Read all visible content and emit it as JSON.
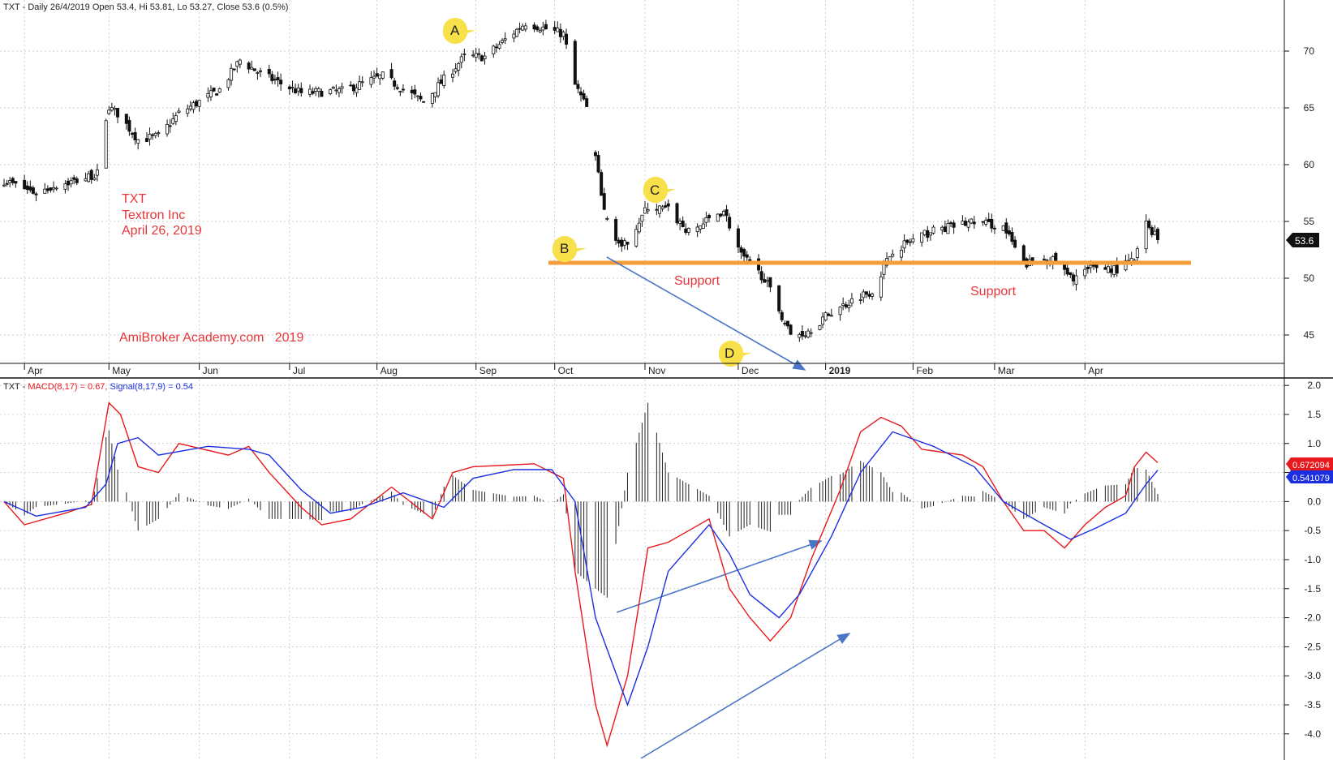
{
  "colors": {
    "grid": "#bdbdbd",
    "annotation_red": "#e8363a",
    "support_line": "#f59d3c",
    "arrow_blue": "#4a76c8",
    "macd_line": "#e8191d",
    "signal_line": "#1b2fe0",
    "histogram": "#222222",
    "callout": "#f7e04a",
    "price_box": "#111111"
  },
  "price_panel": {
    "header": "TXT - Daily 26/4/2019 Open 53.4, Hi 53.81, Lo 53.27, Close 53.6 (0.5%)",
    "title_lines": [
      "TXT",
      "Textron Inc",
      "April 26, 2019"
    ],
    "watermark": "AmiBroker Academy.com   2019",
    "support_labels": [
      "Support",
      "Support"
    ],
    "last_price": "53.6",
    "callouts": [
      "A",
      "B",
      "C",
      "D"
    ]
  },
  "macd_panel": {
    "header_prefix": "TXT - ",
    "macd_label": "MACD(8,17) = 0.67,",
    "signal_label": "Signal(8,17,9) = 0.54",
    "macd_value_box": "0.672094",
    "signal_value_box": "0.541079"
  },
  "chart_data": [
    {
      "type": "candlestick",
      "ylim": [
        42.5,
        74.5
      ],
      "y_ticks": [
        "45",
        "50",
        "55",
        "60",
        "65",
        "70"
      ],
      "x_tick_labels": [
        "Apr",
        "May",
        "Jun",
        "Jul",
        "Aug",
        "Sep",
        "Oct",
        "Nov",
        "Dec",
        "2019",
        "Feb",
        "Mar",
        "Apr"
      ],
      "support_level": 51.6,
      "close_path": [
        {
          "x": "2018-03-26",
          "close": 58.6
        },
        {
          "x": "2018-04-06",
          "close": 57.5
        },
        {
          "x": "2018-04-13",
          "close": 58.2
        },
        {
          "x": "2018-04-20",
          "close": 58.6
        },
        {
          "x": "2018-04-27",
          "close": 59.2
        },
        {
          "x": "2018-05-01",
          "close": 65.0
        },
        {
          "x": "2018-05-04",
          "close": 64.5
        },
        {
          "x": "2018-05-11",
          "close": 62.2
        },
        {
          "x": "2018-05-18",
          "close": 62.5
        },
        {
          "x": "2018-05-25",
          "close": 64.5
        },
        {
          "x": "2018-06-08",
          "close": 66.6
        },
        {
          "x": "2018-06-15",
          "close": 69.2
        },
        {
          "x": "2018-06-22",
          "close": 68.0
        },
        {
          "x": "2018-07-06",
          "close": 66.3
        },
        {
          "x": "2018-07-20",
          "close": 66.5
        },
        {
          "x": "2018-08-03",
          "close": 67.8
        },
        {
          "x": "2018-08-17",
          "close": 65.5
        },
        {
          "x": "2018-08-24",
          "close": 67.5
        },
        {
          "x": "2018-08-31",
          "close": 69.5
        },
        {
          "x": "2018-09-07",
          "close": 69.5
        },
        {
          "x": "2018-09-21",
          "close": 72.5
        },
        {
          "x": "2018-10-04",
          "close": 71.5
        },
        {
          "x": "2018-10-08",
          "close": 67.0
        },
        {
          "x": "2018-10-12",
          "close": 65.0
        },
        {
          "x": "2018-10-18",
          "close": 56.0
        },
        {
          "x": "2018-10-24",
          "close": 52.5
        },
        {
          "x": "2018-11-02",
          "close": 56.3
        },
        {
          "x": "2018-11-09",
          "close": 56.0
        },
        {
          "x": "2018-11-16",
          "close": 54.0
        },
        {
          "x": "2018-11-28",
          "close": 56.0
        },
        {
          "x": "2018-12-04",
          "close": 52.0
        },
        {
          "x": "2018-12-12",
          "close": 50.0
        },
        {
          "x": "2018-12-21",
          "close": 45.0
        },
        {
          "x": "2018-12-26",
          "close": 45.2
        },
        {
          "x": "2019-01-04",
          "close": 47.0
        },
        {
          "x": "2019-01-14",
          "close": 48.5
        },
        {
          "x": "2019-01-18",
          "close": 48.9
        },
        {
          "x": "2019-01-25",
          "close": 52.5
        },
        {
          "x": "2019-02-08",
          "close": 54.2
        },
        {
          "x": "2019-02-22",
          "close": 55.0
        },
        {
          "x": "2019-03-04",
          "close": 54.5
        },
        {
          "x": "2019-03-11",
          "close": 51.2
        },
        {
          "x": "2019-03-20",
          "close": 51.8
        },
        {
          "x": "2019-03-27",
          "close": 50.0
        },
        {
          "x": "2019-04-05",
          "close": 51.0
        },
        {
          "x": "2019-04-12",
          "close": 50.8
        },
        {
          "x": "2019-04-18",
          "close": 51.6
        },
        {
          "x": "2019-04-22",
          "close": 54.8
        },
        {
          "x": "2019-04-26",
          "close": 53.6
        }
      ]
    },
    {
      "type": "line",
      "ylim": [
        -4.45,
        2.1
      ],
      "y_ticks": [
        "2.0",
        "1.5",
        "1.0",
        "0.5",
        "0.0",
        "-0.5",
        "-1.0",
        "-1.5",
        "-2.0",
        "-2.5",
        "-3.0",
        "-3.5",
        "-4.0"
      ],
      "series": [
        {
          "name": "MACD(8,17)",
          "points": [
            {
              "x": "2018-03-26",
              "y": 0.0
            },
            {
              "x": "2018-04-02",
              "y": -0.4
            },
            {
              "x": "2018-04-16",
              "y": -0.2
            },
            {
              "x": "2018-04-25",
              "y": -0.05
            },
            {
              "x": "2018-05-01",
              "y": 1.7
            },
            {
              "x": "2018-05-05",
              "y": 1.5
            },
            {
              "x": "2018-05-11",
              "y": 0.6
            },
            {
              "x": "2018-05-18",
              "y": 0.5
            },
            {
              "x": "2018-05-25",
              "y": 1.0
            },
            {
              "x": "2018-06-11",
              "y": 0.8
            },
            {
              "x": "2018-06-18",
              "y": 0.95
            },
            {
              "x": "2018-06-25",
              "y": 0.5
            },
            {
              "x": "2018-07-06",
              "y": -0.1
            },
            {
              "x": "2018-07-13",
              "y": -0.4
            },
            {
              "x": "2018-07-23",
              "y": -0.3
            },
            {
              "x": "2018-08-06",
              "y": 0.25
            },
            {
              "x": "2018-08-20",
              "y": -0.3
            },
            {
              "x": "2018-08-27",
              "y": 0.5
            },
            {
              "x": "2018-09-03",
              "y": 0.6
            },
            {
              "x": "2018-09-24",
              "y": 0.65
            },
            {
              "x": "2018-10-04",
              "y": 0.4
            },
            {
              "x": "2018-10-08",
              "y": -1.2
            },
            {
              "x": "2018-10-15",
              "y": -3.5
            },
            {
              "x": "2018-10-19",
              "y": -4.2
            },
            {
              "x": "2018-10-26",
              "y": -3.0
            },
            {
              "x": "2018-11-02",
              "y": -0.8
            },
            {
              "x": "2018-11-09",
              "y": -0.7
            },
            {
              "x": "2018-11-16",
              "y": -0.5
            },
            {
              "x": "2018-11-23",
              "y": -0.3
            },
            {
              "x": "2018-11-30",
              "y": -1.5
            },
            {
              "x": "2018-12-07",
              "y": -2.0
            },
            {
              "x": "2018-12-14",
              "y": -2.4
            },
            {
              "x": "2018-12-21",
              "y": -2.0
            },
            {
              "x": "2018-12-28",
              "y": -1.0
            },
            {
              "x": "2019-01-07",
              "y": 0.2
            },
            {
              "x": "2019-01-14",
              "y": 1.2
            },
            {
              "x": "2019-01-21",
              "y": 1.45
            },
            {
              "x": "2019-01-28",
              "y": 1.3
            },
            {
              "x": "2019-02-04",
              "y": 0.9
            },
            {
              "x": "2019-02-18",
              "y": 0.8
            },
            {
              "x": "2019-02-25",
              "y": 0.6
            },
            {
              "x": "2019-03-04",
              "y": 0.0
            },
            {
              "x": "2019-03-11",
              "y": -0.5
            },
            {
              "x": "2019-03-18",
              "y": -0.5
            },
            {
              "x": "2019-03-25",
              "y": -0.8
            },
            {
              "x": "2019-04-01",
              "y": -0.4
            },
            {
              "x": "2019-04-08",
              "y": -0.1
            },
            {
              "x": "2019-04-15",
              "y": 0.1
            },
            {
              "x": "2019-04-18",
              "y": 0.6
            },
            {
              "x": "2019-04-22",
              "y": 0.85
            },
            {
              "x": "2019-04-26",
              "y": 0.67
            }
          ]
        },
        {
          "name": "Signal(8,17,9)",
          "points": [
            {
              "x": "2018-03-26",
              "y": 0.0
            },
            {
              "x": "2018-04-06",
              "y": -0.25
            },
            {
              "x": "2018-04-23",
              "y": -0.1
            },
            {
              "x": "2018-04-30",
              "y": 0.3
            },
            {
              "x": "2018-05-04",
              "y": 1.0
            },
            {
              "x": "2018-05-11",
              "y": 1.1
            },
            {
              "x": "2018-05-18",
              "y": 0.8
            },
            {
              "x": "2018-06-04",
              "y": 0.95
            },
            {
              "x": "2018-06-18",
              "y": 0.9
            },
            {
              "x": "2018-06-25",
              "y": 0.8
            },
            {
              "x": "2018-07-06",
              "y": 0.2
            },
            {
              "x": "2018-07-16",
              "y": -0.2
            },
            {
              "x": "2018-07-27",
              "y": -0.1
            },
            {
              "x": "2018-08-10",
              "y": 0.15
            },
            {
              "x": "2018-08-24",
              "y": -0.1
            },
            {
              "x": "2018-09-03",
              "y": 0.4
            },
            {
              "x": "2018-09-17",
              "y": 0.55
            },
            {
              "x": "2018-09-30",
              "y": 0.55
            },
            {
              "x": "2018-10-08",
              "y": 0.0
            },
            {
              "x": "2018-10-15",
              "y": -2.0
            },
            {
              "x": "2018-10-26",
              "y": -3.5
            },
            {
              "x": "2018-11-02",
              "y": -2.5
            },
            {
              "x": "2018-11-09",
              "y": -1.2
            },
            {
              "x": "2018-11-23",
              "y": -0.4
            },
            {
              "x": "2018-11-30",
              "y": -0.9
            },
            {
              "x": "2018-12-07",
              "y": -1.6
            },
            {
              "x": "2018-12-17",
              "y": -2.0
            },
            {
              "x": "2018-12-24",
              "y": -1.6
            },
            {
              "x": "2019-01-04",
              "y": -0.6
            },
            {
              "x": "2019-01-14",
              "y": 0.5
            },
            {
              "x": "2019-01-25",
              "y": 1.2
            },
            {
              "x": "2019-02-08",
              "y": 0.95
            },
            {
              "x": "2019-02-22",
              "y": 0.6
            },
            {
              "x": "2019-03-04",
              "y": 0.0
            },
            {
              "x": "2019-03-18",
              "y": -0.4
            },
            {
              "x": "2019-03-27",
              "y": -0.65
            },
            {
              "x": "2019-04-05",
              "y": -0.45
            },
            {
              "x": "2019-04-15",
              "y": -0.2
            },
            {
              "x": "2019-04-22",
              "y": 0.3
            },
            {
              "x": "2019-04-26",
              "y": 0.54
            }
          ]
        }
      ]
    }
  ]
}
